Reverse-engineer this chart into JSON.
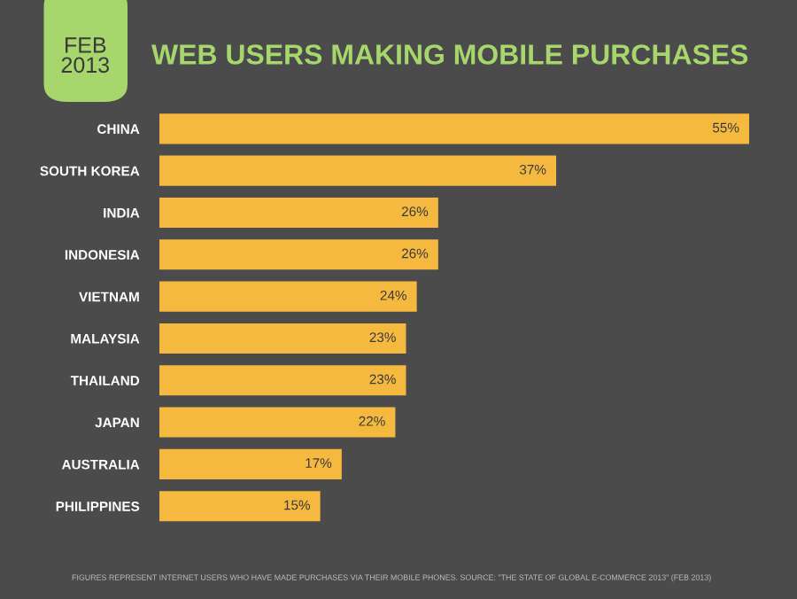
{
  "chart_data": {
    "type": "bar",
    "orientation": "horizontal",
    "title": "WEB USERS MAKING MOBILE PURCHASES",
    "subtitle": "FEB 2013",
    "categories": [
      "CHINA",
      "SOUTH KOREA",
      "INDIA",
      "INDONESIA",
      "VIETNAM",
      "MALAYSIA",
      "THAILAND",
      "JAPAN",
      "AUSTRALIA",
      "PHILIPPINES"
    ],
    "values": [
      55,
      37,
      26,
      26,
      24,
      23,
      23,
      22,
      17,
      15
    ],
    "value_labels": [
      "55%",
      "37%",
      "26%",
      "26%",
      "24%",
      "23%",
      "23%",
      "22%",
      "17%",
      "15%"
    ],
    "color": "#f6b940",
    "annotations": [
      "FIGURES REPRESENT INTERNET USERS WHO HAVE MADE PURCHASES VIA THEIR MOBILE PHONES. SOURCE: \"THE STATE OF GLOBAL E-COMMERCE 2013\" (FEB 2013)"
    ],
    "grid": false,
    "legend": false
  }
}
